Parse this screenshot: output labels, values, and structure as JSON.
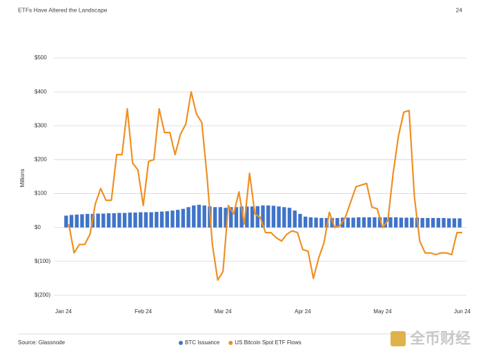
{
  "header": {
    "title": "ETFs Have Altered the Landscape",
    "page": "24"
  },
  "footer": {
    "source": "Source: Glassnode",
    "watermark": "全币财经"
  },
  "chart_data": {
    "type": "bar-line",
    "y_label": "Millions",
    "ylim": [
      -200,
      500
    ],
    "yticks": [
      {
        "value": 500,
        "label": "$500"
      },
      {
        "value": 400,
        "label": "$400"
      },
      {
        "value": 300,
        "label": "$300"
      },
      {
        "value": 200,
        "label": "$200"
      },
      {
        "value": 100,
        "label": "$100"
      },
      {
        "value": 0,
        "label": "$0"
      },
      {
        "value": -100,
        "label": "$(100)"
      },
      {
        "value": -200,
        "label": "$(200)"
      }
    ],
    "grid": true,
    "categories": [
      "Jan 24",
      null,
      null,
      null,
      null,
      null,
      null,
      null,
      null,
      null,
      null,
      null,
      null,
      null,
      null,
      "Feb 24",
      null,
      null,
      null,
      null,
      null,
      null,
      null,
      null,
      null,
      null,
      null,
      null,
      null,
      null,
      "Mar 24",
      null,
      null,
      null,
      null,
      null,
      null,
      null,
      null,
      null,
      null,
      null,
      null,
      null,
      null,
      "Apr 24",
      null,
      null,
      null,
      null,
      null,
      null,
      null,
      null,
      null,
      null,
      null,
      null,
      null,
      null,
      "May 24",
      null,
      null,
      null,
      null,
      null,
      null,
      null,
      null,
      null,
      null,
      null,
      null,
      null,
      null,
      "Jun 24"
    ],
    "series": [
      {
        "name": "BTC Issuance",
        "type": "bar",
        "color": "#3f74c9",
        "values": [
          35,
          37,
          38,
          39,
          40,
          40,
          41,
          41,
          42,
          42,
          43,
          43,
          44,
          44,
          45,
          45,
          45,
          46,
          47,
          48,
          50,
          52,
          55,
          60,
          65,
          67,
          65,
          62,
          60,
          60,
          58,
          60,
          60,
          62,
          62,
          62,
          63,
          65,
          65,
          64,
          62,
          60,
          58,
          50,
          40,
          32,
          30,
          29,
          28,
          28,
          28,
          28,
          29,
          29,
          29,
          30,
          30,
          30,
          30,
          30,
          30,
          30,
          30,
          29,
          29,
          29,
          29,
          28,
          28,
          28,
          28,
          28,
          27,
          27,
          27,
          27
        ]
      },
      {
        "name": "US Bitcoin Spot ETF Flows",
        "type": "line",
        "color": "#ef8f22",
        "values": [
          null,
          10,
          -75,
          -50,
          -50,
          -20,
          70,
          115,
          80,
          80,
          215,
          215,
          350,
          190,
          170,
          65,
          195,
          200,
          350,
          280,
          280,
          215,
          275,
          305,
          400,
          335,
          310,
          150,
          -50,
          -155,
          -130,
          65,
          40,
          105,
          10,
          160,
          40,
          30,
          -15,
          -15,
          -30,
          -40,
          -20,
          -10,
          -15,
          -65,
          -70,
          -150,
          -90,
          -45,
          45,
          0,
          5,
          30,
          75,
          120,
          125,
          130,
          60,
          55,
          0,
          20,
          160,
          270,
          340,
          345,
          90,
          -40,
          -75,
          -75,
          -80,
          -75,
          -75,
          -80,
          -15,
          -15
        ]
      }
    ]
  }
}
